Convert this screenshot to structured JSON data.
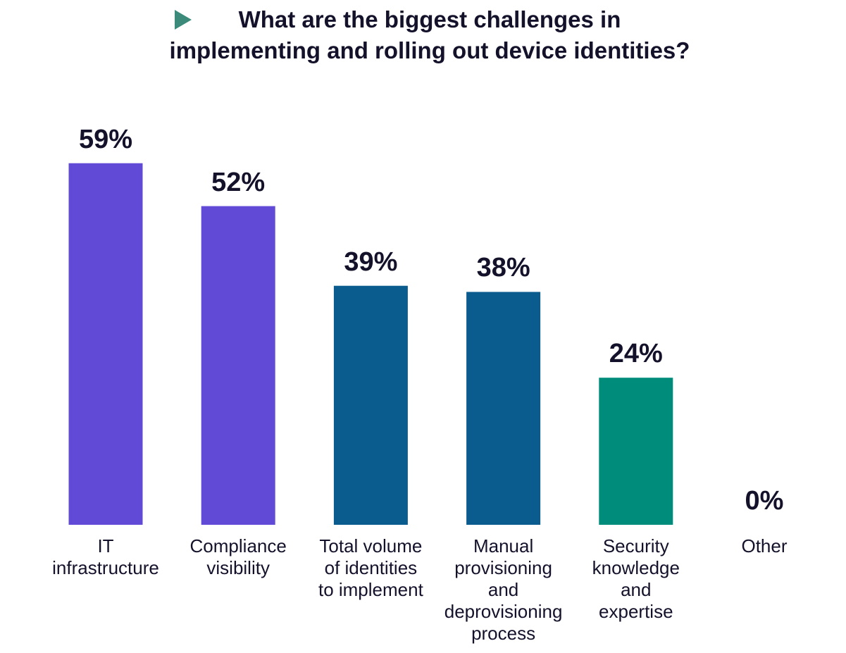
{
  "chart_data": {
    "type": "bar",
    "title": "What are the biggest challenges in\nimplementing and rolling out device identities?",
    "categories": [
      "IT\ninfrastructure",
      "Compliance\nvisibility",
      "Total volume\nof identities\nto implement",
      "Manual\nprovisioning\nand\ndeprovisioning\nprocess",
      "Security\nknowledge\nand\nexpertise",
      "Other"
    ],
    "values": [
      59,
      52,
      39,
      38,
      24,
      0
    ],
    "value_labels": [
      "59%",
      "52%",
      "39%",
      "38%",
      "24%",
      "0%"
    ],
    "colors": [
      "#614bd6",
      "#614bd6",
      "#0a5b8e",
      "#0a5b8e",
      "#008c7a",
      "#008c7a"
    ]
  }
}
